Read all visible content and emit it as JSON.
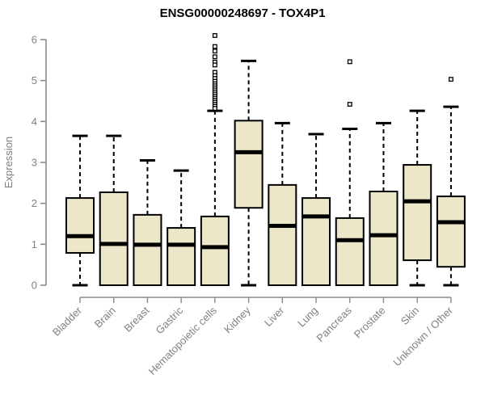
{
  "chart_data": {
    "type": "boxplot",
    "title": "ENSG00000248697 - TOX4P1",
    "ylabel": "Expression",
    "xlabel": "",
    "ylim": [
      0,
      6
    ],
    "yticks": [
      0,
      1,
      2,
      3,
      4,
      5,
      6
    ],
    "grid": false,
    "legend": "none",
    "categories": [
      "Bladder",
      "Brain",
      "Breast",
      "Gastric",
      "Hematopoietic cells",
      "Kidney",
      "Liver",
      "Lung",
      "Pancreas",
      "Prostate",
      "Skin",
      "Unknown / Other"
    ],
    "series": [
      {
        "category": "Bladder",
        "whisker_low": 0,
        "q1": 0.79,
        "median": 1.2,
        "q3": 2.13,
        "whisker_high": 3.65,
        "outliers": []
      },
      {
        "category": "Brain",
        "whisker_low": 0,
        "q1": 0.0,
        "median": 1.01,
        "q3": 2.27,
        "whisker_high": 3.65,
        "outliers": []
      },
      {
        "category": "Breast",
        "whisker_low": 0,
        "q1": 0.0,
        "median": 0.99,
        "q3": 1.72,
        "whisker_high": 3.05,
        "outliers": []
      },
      {
        "category": "Gastric",
        "whisker_low": 0,
        "q1": 0.0,
        "median": 0.99,
        "q3": 1.4,
        "whisker_high": 2.8,
        "outliers": []
      },
      {
        "category": "Hematopoietic cells",
        "whisker_low": 0,
        "q1": 0.0,
        "median": 0.93,
        "q3": 1.68,
        "whisker_high": 4.26,
        "outliers": [
          6.1,
          5.83,
          5.72,
          5.58,
          5.45,
          5.38,
          5.2,
          5.12,
          5.05,
          4.98,
          4.92,
          4.87,
          4.82,
          4.77,
          4.72,
          4.67,
          4.62,
          4.57,
          4.52,
          4.47,
          4.42,
          4.37,
          4.32
        ]
      },
      {
        "category": "Kidney",
        "whisker_low": 0,
        "q1": 1.89,
        "median": 3.25,
        "q3": 4.02,
        "whisker_high": 5.48,
        "outliers": []
      },
      {
        "category": "Liver",
        "whisker_low": 0,
        "q1": 0.0,
        "median": 1.45,
        "q3": 2.45,
        "whisker_high": 3.96,
        "outliers": []
      },
      {
        "category": "Lung",
        "whisker_low": 0,
        "q1": 0.0,
        "median": 1.68,
        "q3": 2.13,
        "whisker_high": 3.69,
        "outliers": []
      },
      {
        "category": "Pancreas",
        "whisker_low": 0,
        "q1": 0.0,
        "median": 1.1,
        "q3": 1.64,
        "whisker_high": 3.82,
        "outliers": [
          5.46,
          4.42
        ]
      },
      {
        "category": "Prostate",
        "whisker_low": 0,
        "q1": 0.0,
        "median": 1.22,
        "q3": 2.29,
        "whisker_high": 3.96,
        "outliers": []
      },
      {
        "category": "Skin",
        "whisker_low": 0,
        "q1": 0.61,
        "median": 2.05,
        "q3": 2.94,
        "whisker_high": 4.26,
        "outliers": []
      },
      {
        "category": "Unknown / Other",
        "whisker_low": 0,
        "q1": 0.45,
        "median": 1.54,
        "q3": 2.17,
        "whisker_high": 4.36,
        "outliers": [
          5.03
        ]
      }
    ],
    "colors": {
      "box_fill": "#EDE7C9",
      "box_border": "#000000",
      "median": "#000000",
      "whisker": "#000000",
      "outlier": "#000000",
      "axis": "#8a8a8a",
      "tick_label": "#808080",
      "title": "#000000",
      "background": "#ffffff"
    }
  }
}
